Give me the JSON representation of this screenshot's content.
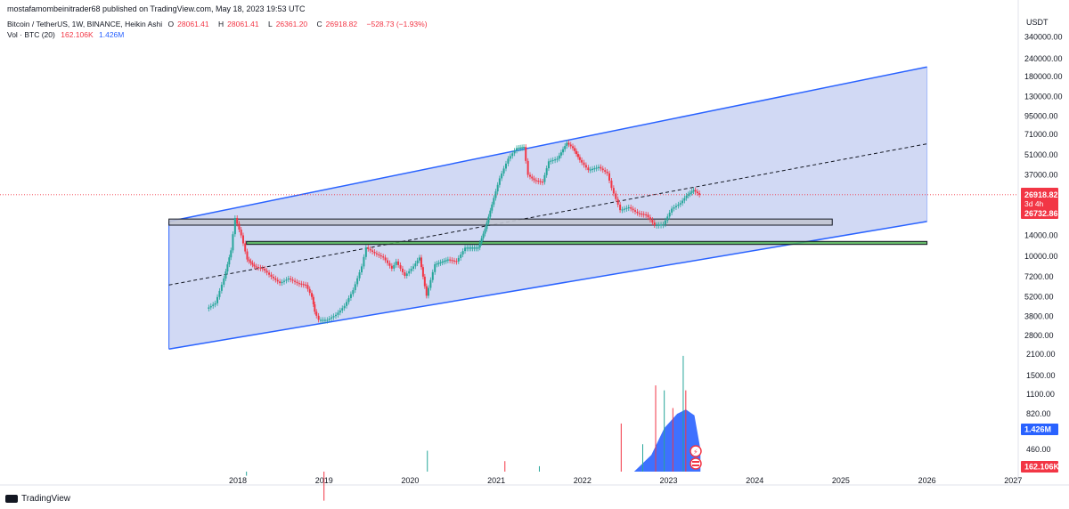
{
  "header": {
    "published_line": "mostafamombeinitrader68 published on TradingView.com, May 18, 2023 19:53 UTC"
  },
  "legend": {
    "symbol": "Bitcoin / TetherUS, 1W, BINANCE, Heikin Ashi",
    "ohlc": {
      "open_label": "O",
      "open": "28061.41",
      "high_label": "H",
      "high": "28061.41",
      "low_label": "L",
      "low": "26361.20",
      "close_label": "C",
      "close": "26918.82",
      "change": "−528.73 (−1.93%)"
    },
    "volume": {
      "label": "Vol · BTC (20)",
      "value1": "162.106K",
      "value2": "1.426M"
    }
  },
  "footer": {
    "brand": "TradingView"
  },
  "chart_data": {
    "type": "line",
    "title": "Bitcoin / TetherUS, 1W, BINANCE, Heikin Ashi",
    "price_scale": "log",
    "currency_label": "USDT",
    "y_ticks": [
      "340000.00",
      "240000.00",
      "180000.00",
      "130000.00",
      "95000.00",
      "71000.00",
      "51000.00",
      "37000.00",
      "26918.82",
      "20000.00",
      "14000.00",
      "10000.00",
      "7200.00",
      "5200.00",
      "3800.00",
      "2800.00"
    ],
    "volume_ticks": [
      "2100.00",
      "1500.00",
      "1100.00",
      "820.00",
      "460.00"
    ],
    "x_ticks": [
      "2018",
      "2019",
      "2020",
      "2021",
      "2022",
      "2023",
      "2024",
      "2025",
      "2026",
      "2027"
    ],
    "price_labels": {
      "last_price": "26918.82",
      "countdown": "3d 4h",
      "second_price": "26732.86",
      "volume_ma": "1.426M",
      "volume_last": "162.106K"
    },
    "price_series": {
      "name": "BTCUSDT",
      "points": [
        [
          2017.65,
          4300
        ],
        [
          2017.75,
          4700
        ],
        [
          2017.85,
          7000
        ],
        [
          2017.93,
          11000
        ],
        [
          2017.98,
          18500
        ],
        [
          2018.05,
          14000
        ],
        [
          2018.12,
          9500
        ],
        [
          2018.2,
          8500
        ],
        [
          2018.3,
          8200
        ],
        [
          2018.4,
          7200
        ],
        [
          2018.5,
          6500
        ],
        [
          2018.6,
          7000
        ],
        [
          2018.7,
          6500
        ],
        [
          2018.8,
          6300
        ],
        [
          2018.87,
          5200
        ],
        [
          2018.9,
          4100
        ],
        [
          2018.95,
          3600
        ],
        [
          2019.05,
          3600
        ],
        [
          2019.15,
          3900
        ],
        [
          2019.25,
          4500
        ],
        [
          2019.35,
          5800
        ],
        [
          2019.45,
          8500
        ],
        [
          2019.5,
          11500
        ],
        [
          2019.6,
          10500
        ],
        [
          2019.7,
          9800
        ],
        [
          2019.8,
          8200
        ],
        [
          2019.85,
          9200
        ],
        [
          2019.95,
          7300
        ],
        [
          2020.05,
          8500
        ],
        [
          2020.12,
          9800
        ],
        [
          2020.2,
          5300
        ],
        [
          2020.3,
          8800
        ],
        [
          2020.45,
          9500
        ],
        [
          2020.55,
          9200
        ],
        [
          2020.65,
          11500
        ],
        [
          2020.8,
          11500
        ],
        [
          2020.88,
          15500
        ],
        [
          2020.96,
          23000
        ],
        [
          2021.05,
          35000
        ],
        [
          2021.15,
          48000
        ],
        [
          2021.25,
          57000
        ],
        [
          2021.33,
          58000
        ],
        [
          2021.38,
          37000
        ],
        [
          2021.45,
          34000
        ],
        [
          2021.55,
          33000
        ],
        [
          2021.62,
          46000
        ],
        [
          2021.72,
          48000
        ],
        [
          2021.83,
          62000
        ],
        [
          2021.9,
          57000
        ],
        [
          2021.98,
          47000
        ],
        [
          2022.08,
          40000
        ],
        [
          2022.2,
          42000
        ],
        [
          2022.3,
          38000
        ],
        [
          2022.35,
          30000
        ],
        [
          2022.45,
          21000
        ],
        [
          2022.55,
          22000
        ],
        [
          2022.65,
          20000
        ],
        [
          2022.75,
          19500
        ],
        [
          2022.85,
          16500
        ],
        [
          2022.95,
          16700
        ],
        [
          2023.05,
          21500
        ],
        [
          2023.15,
          23500
        ],
        [
          2023.22,
          26500
        ],
        [
          2023.3,
          29000
        ],
        [
          2023.37,
          26900
        ]
      ]
    },
    "volume_series": {
      "name": "Vol · BTC",
      "ma_points": [
        [
          2017.65,
          20
        ],
        [
          2018.0,
          70
        ],
        [
          2018.5,
          120
        ],
        [
          2019.0,
          130
        ],
        [
          2019.5,
          160
        ],
        [
          2020.0,
          150
        ],
        [
          2020.5,
          170
        ],
        [
          2021.0,
          200
        ],
        [
          2021.5,
          190
        ],
        [
          2022.0,
          120
        ],
        [
          2022.4,
          140
        ],
        [
          2022.6,
          220
        ],
        [
          2022.8,
          420
        ],
        [
          2022.95,
          650
        ],
        [
          2023.1,
          820
        ],
        [
          2023.2,
          880
        ],
        [
          2023.3,
          800
        ],
        [
          2023.37,
          460
        ]
      ]
    },
    "channel": {
      "upper": [
        [
          2017.2,
          17500
        ],
        [
          2026.0,
          210000
        ]
      ],
      "lower": [
        [
          2017.2,
          2250
        ],
        [
          2026.0,
          17500
        ]
      ],
      "midline": [
        [
          2017.2,
          6300
        ],
        [
          2026.0,
          61000
        ]
      ]
    },
    "zones": [
      {
        "name": "resistance zone",
        "from_x": 2017.2,
        "to_x": 2024.9,
        "from_y": 16500,
        "to_y": 18200
      },
      {
        "name": "support zone",
        "from_x": 2018.1,
        "to_x": 2026.0,
        "from_y": 12100,
        "to_y": 12700
      }
    ],
    "current_price_line": 26918.82,
    "grid": true
  },
  "colors": {
    "up": "#26a69a",
    "down": "#f23645",
    "channel_line": "#2962ff",
    "channel_fill": "#c9d2f2",
    "volume": "#2962ff",
    "price_line": "#f23645",
    "zone_fill": "#c2c5d1",
    "support_fill": "#4caf50"
  },
  "icons": {
    "brand_logo": "tradingview-logo-icon",
    "flash": "flash-icon",
    "flag": "us-flag-icon"
  }
}
